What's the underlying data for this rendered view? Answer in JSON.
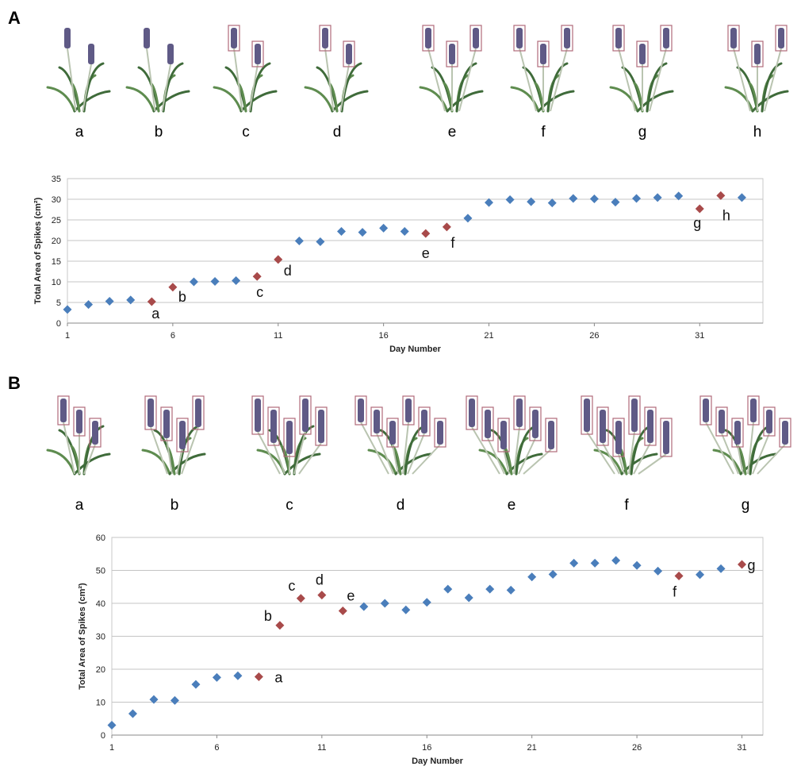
{
  "panels": [
    {
      "letter": "A",
      "plant_labels": [
        "a",
        "b",
        "c",
        "d",
        "e",
        "f",
        "g",
        "h"
      ],
      "chart_data": {
        "type": "scatter",
        "title": "",
        "xlabel": "Day Number",
        "ylabel": "Total Area of Spikes (cm²)",
        "xlim": [
          1,
          34
        ],
        "ylim": [
          0,
          35
        ],
        "x_ticks": [
          1,
          6,
          11,
          16,
          21,
          26,
          31
        ],
        "y_ticks": [
          0,
          5,
          10,
          15,
          20,
          25,
          30,
          35
        ],
        "grid": "horizontal",
        "series": [
          {
            "points": [
              {
                "x": 1,
                "y": 3.3
              },
              {
                "x": 2,
                "y": 4.5
              },
              {
                "x": 3,
                "y": 5.3
              },
              {
                "x": 4,
                "y": 5.6
              },
              {
                "x": 7,
                "y": 10.0
              },
              {
                "x": 8,
                "y": 10.1
              },
              {
                "x": 9,
                "y": 10.3
              },
              {
                "x": 12,
                "y": 19.9
              },
              {
                "x": 13,
                "y": 19.7
              },
              {
                "x": 14,
                "y": 22.2
              },
              {
                "x": 15,
                "y": 22.0
              },
              {
                "x": 16,
                "y": 23.0
              },
              {
                "x": 17,
                "y": 22.2
              },
              {
                "x": 20,
                "y": 25.4
              },
              {
                "x": 21,
                "y": 29.2
              },
              {
                "x": 22,
                "y": 29.9
              },
              {
                "x": 23,
                "y": 29.4
              },
              {
                "x": 24,
                "y": 29.1
              },
              {
                "x": 25,
                "y": 30.2
              },
              {
                "x": 26,
                "y": 30.1
              },
              {
                "x": 27,
                "y": 29.3
              },
              {
                "x": 28,
                "y": 30.2
              },
              {
                "x": 29,
                "y": 30.4
              },
              {
                "x": 30,
                "y": 30.8
              },
              {
                "x": 33,
                "y": 30.4
              }
            ],
            "color": "#4a7ebb"
          },
          {
            "points": [
              {
                "x": 5,
                "y": 5.2,
                "label": "a"
              },
              {
                "x": 6,
                "y": 8.7,
                "label": "b"
              },
              {
                "x": 10,
                "y": 11.3,
                "label": "c"
              },
              {
                "x": 11,
                "y": 15.4,
                "label": "d"
              },
              {
                "x": 18,
                "y": 21.7,
                "label": "e"
              },
              {
                "x": 19,
                "y": 23.3,
                "label": "f"
              },
              {
                "x": 31,
                "y": 27.7,
                "label": "g"
              },
              {
                "x": 32,
                "y": 30.9,
                "label": "h"
              }
            ],
            "color": "#a84a4a"
          }
        ]
      }
    },
    {
      "letter": "B",
      "plant_labels": [
        "a",
        "b",
        "c",
        "d",
        "e",
        "f",
        "g"
      ],
      "chart_data": {
        "type": "scatter",
        "title": "",
        "xlabel": "Day Number",
        "ylabel": "Total Area of Spikes (cm²)",
        "xlim": [
          1,
          32
        ],
        "ylim": [
          0,
          60
        ],
        "x_ticks": [
          1,
          6,
          11,
          16,
          21,
          26,
          31
        ],
        "y_ticks": [
          0,
          10,
          20,
          30,
          40,
          50,
          60
        ],
        "grid": "horizontal",
        "series": [
          {
            "points": [
              {
                "x": 1,
                "y": 3.0
              },
              {
                "x": 2,
                "y": 6.5
              },
              {
                "x": 3,
                "y": 10.8
              },
              {
                "x": 4,
                "y": 10.5
              },
              {
                "x": 5,
                "y": 15.4
              },
              {
                "x": 6,
                "y": 17.5
              },
              {
                "x": 7,
                "y": 18.0
              },
              {
                "x": 13,
                "y": 39.0
              },
              {
                "x": 14,
                "y": 40.0
              },
              {
                "x": 15,
                "y": 38.0
              },
              {
                "x": 16,
                "y": 40.3
              },
              {
                "x": 17,
                "y": 44.3
              },
              {
                "x": 18,
                "y": 41.7
              },
              {
                "x": 19,
                "y": 44.3
              },
              {
                "x": 20,
                "y": 44.0
              },
              {
                "x": 21,
                "y": 48.0
              },
              {
                "x": 22,
                "y": 48.8
              },
              {
                "x": 23,
                "y": 52.2
              },
              {
                "x": 24,
                "y": 52.2
              },
              {
                "x": 25,
                "y": 53.0
              },
              {
                "x": 26,
                "y": 51.5
              },
              {
                "x": 27,
                "y": 49.8
              },
              {
                "x": 29,
                "y": 48.7
              },
              {
                "x": 30,
                "y": 50.5
              }
            ],
            "color": "#4a7ebb"
          },
          {
            "points": [
              {
                "x": 8,
                "y": 17.7,
                "label": "a"
              },
              {
                "x": 9,
                "y": 33.3,
                "label": "b"
              },
              {
                "x": 10,
                "y": 41.5,
                "label": "c"
              },
              {
                "x": 11,
                "y": 42.5,
                "label": "d"
              },
              {
                "x": 12,
                "y": 37.7,
                "label": "e"
              },
              {
                "x": 28,
                "y": 48.3,
                "label": "f"
              },
              {
                "x": 31,
                "y": 51.8,
                "label": "g"
              }
            ],
            "color": "#a84a4a"
          }
        ]
      }
    }
  ]
}
